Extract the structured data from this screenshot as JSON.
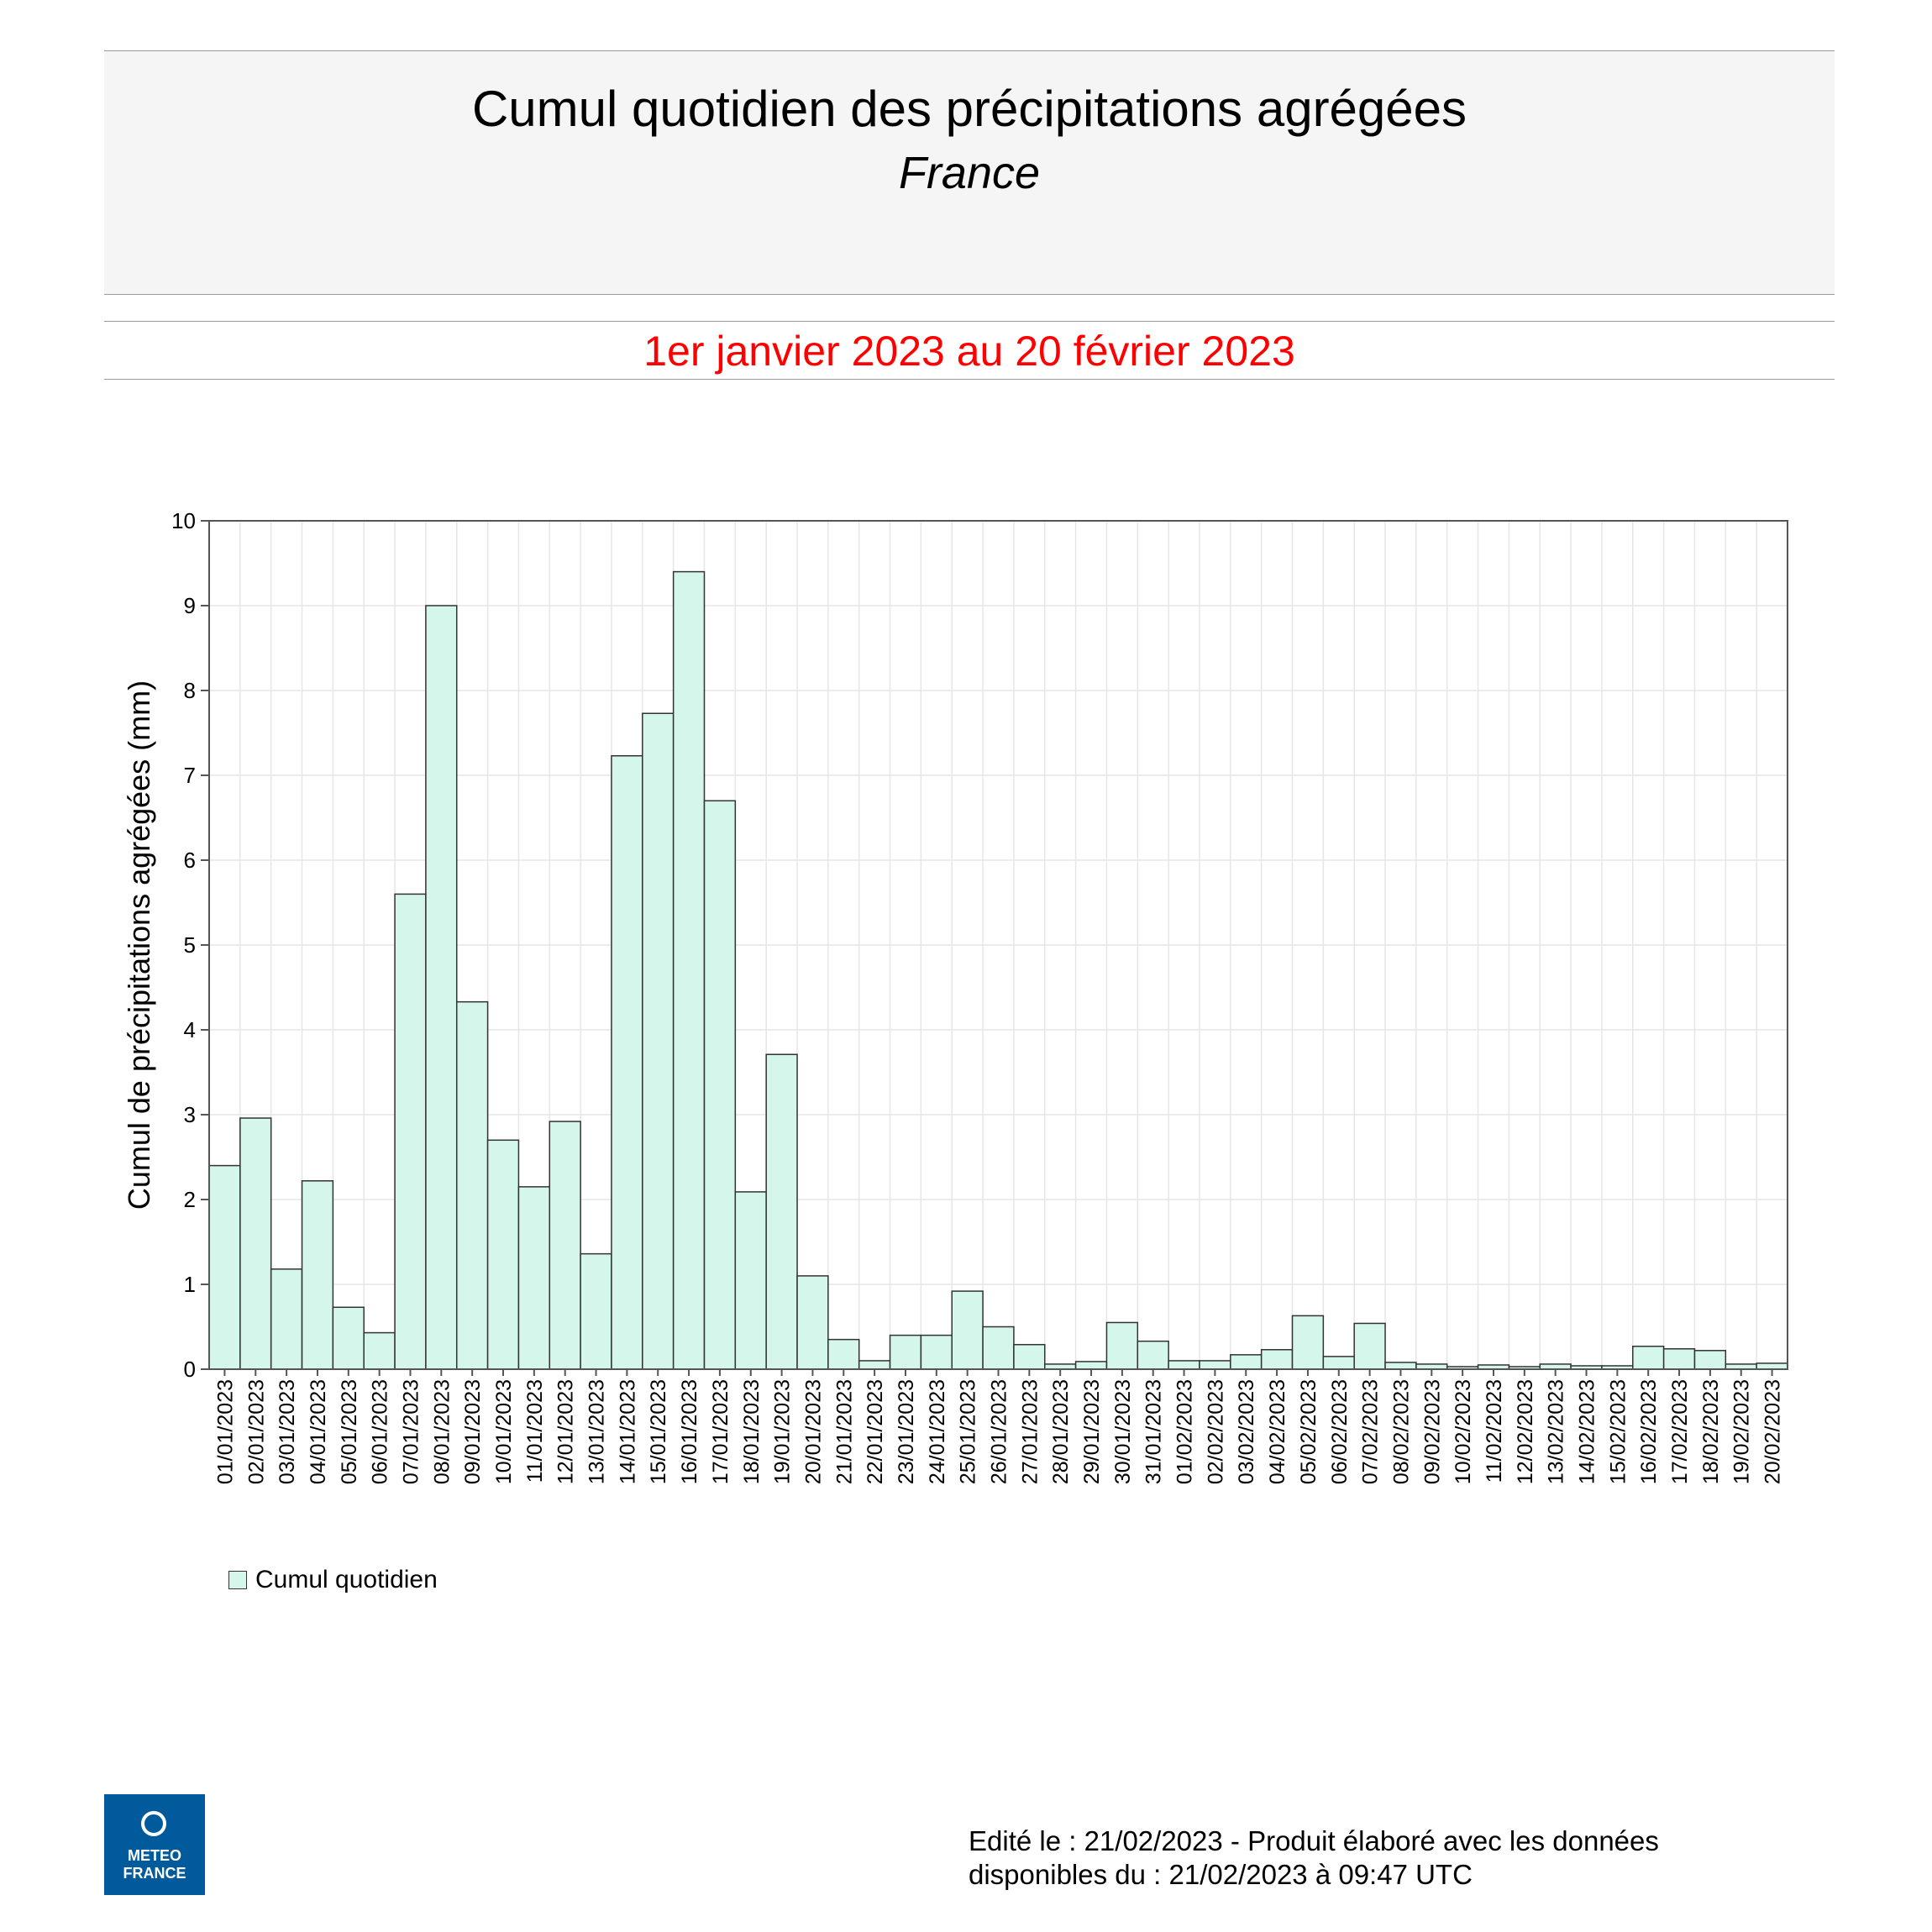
{
  "header": {
    "title": "Cumul quotidien des précipitations agrégées",
    "subtitle": "France",
    "period": "1er janvier 2023 au 20 février 2023"
  },
  "chart_data": {
    "type": "bar",
    "ylabel": "Cumul de précipitations agrégées (mm)",
    "xlabel": "",
    "ylim": [
      0,
      10
    ],
    "yticks": [
      0,
      1,
      2,
      3,
      4,
      5,
      6,
      7,
      8,
      9,
      10
    ],
    "grid": true,
    "legend_position": "bottom-left",
    "categories": [
      "01/01/2023",
      "02/01/2023",
      "03/01/2023",
      "04/01/2023",
      "05/01/2023",
      "06/01/2023",
      "07/01/2023",
      "08/01/2023",
      "09/01/2023",
      "10/01/2023",
      "11/01/2023",
      "12/01/2023",
      "13/01/2023",
      "14/01/2023",
      "15/01/2023",
      "16/01/2023",
      "17/01/2023",
      "18/01/2023",
      "19/01/2023",
      "20/01/2023",
      "21/01/2023",
      "22/01/2023",
      "23/01/2023",
      "24/01/2023",
      "25/01/2023",
      "26/01/2023",
      "27/01/2023",
      "28/01/2023",
      "29/01/2023",
      "30/01/2023",
      "31/01/2023",
      "01/02/2023",
      "02/02/2023",
      "03/02/2023",
      "04/02/2023",
      "05/02/2023",
      "06/02/2023",
      "07/02/2023",
      "08/02/2023",
      "09/02/2023",
      "10/02/2023",
      "11/02/2023",
      "12/02/2023",
      "13/02/2023",
      "14/02/2023",
      "15/02/2023",
      "16/02/2023",
      "17/02/2023",
      "18/02/2023",
      "19/02/2023",
      "20/02/2023"
    ],
    "series": [
      {
        "name": "Cumul quotidien",
        "color": "#d5f6ea",
        "values": [
          2.4,
          2.96,
          1.18,
          2.22,
          0.73,
          0.43,
          5.6,
          9.0,
          4.33,
          2.7,
          2.15,
          2.92,
          1.36,
          7.23,
          7.73,
          9.4,
          6.7,
          2.09,
          3.71,
          1.1,
          0.35,
          0.1,
          0.4,
          0.4,
          0.92,
          0.5,
          0.29,
          0.06,
          0.09,
          0.55,
          0.33,
          0.1,
          0.1,
          0.17,
          0.23,
          0.63,
          0.15,
          0.54,
          0.08,
          0.06,
          0.03,
          0.05,
          0.03,
          0.06,
          0.04,
          0.04,
          0.27,
          0.24,
          0.22,
          0.06,
          0.07
        ]
      }
    ]
  },
  "legend": {
    "label": "Cumul quotidien"
  },
  "logo": {
    "line1": "METEO",
    "line2": "FRANCE"
  },
  "footer": {
    "line1": "Edité le : 21/02/2023 - Produit élaboré avec les données",
    "line2": "disponibles du : 21/02/2023 à 09:47 UTC"
  }
}
